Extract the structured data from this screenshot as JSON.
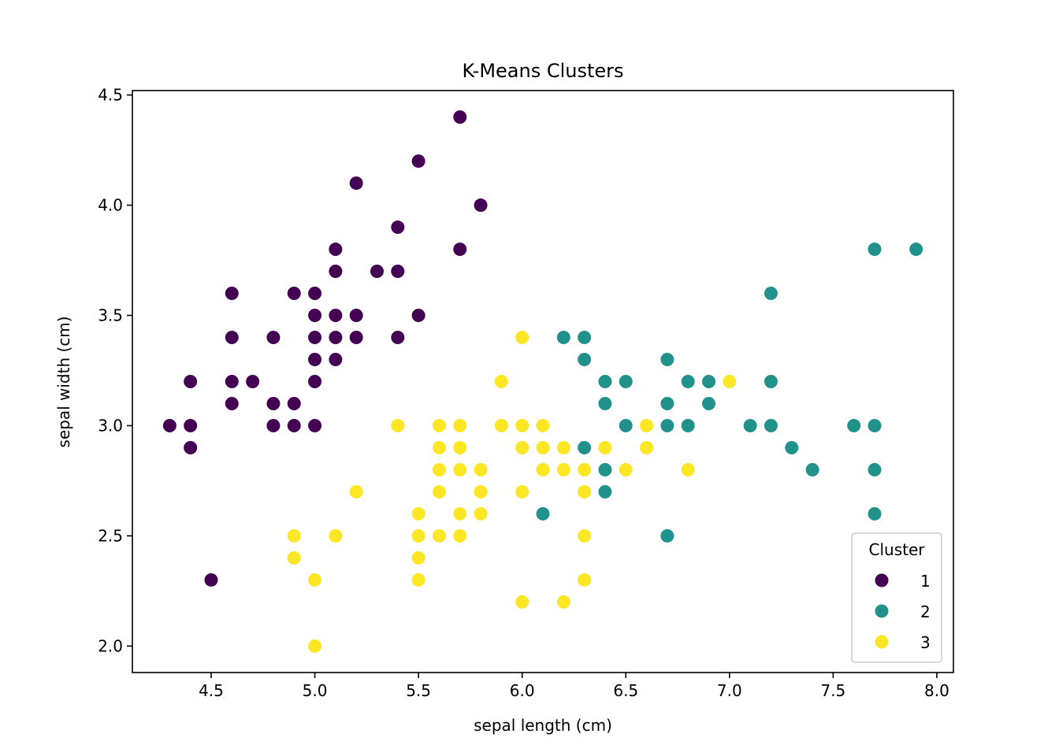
{
  "chart_data": {
    "type": "scatter",
    "title": "K-Means Clusters",
    "xlabel": "sepal length (cm)",
    "ylabel": "sepal width (cm)",
    "xlim": [
      4.12,
      8.08
    ],
    "ylim": [
      1.88,
      4.52
    ],
    "xticks": [
      "4.5",
      "5.0",
      "5.5",
      "6.0",
      "6.5",
      "7.0",
      "7.5",
      "8.0"
    ],
    "yticks": [
      "2.0",
      "2.5",
      "3.0",
      "3.5",
      "4.0",
      "4.5"
    ],
    "grid": false,
    "legend": {
      "title": "Cluster",
      "position": "bottom-right"
    },
    "series": [
      {
        "name": "1",
        "color": "#440154",
        "points": [
          [
            5.7,
            4.4
          ],
          [
            5.5,
            4.2
          ],
          [
            5.2,
            4.1
          ],
          [
            5.8,
            4.0
          ],
          [
            5.4,
            3.9
          ],
          [
            5.1,
            3.8
          ],
          [
            5.7,
            3.8
          ],
          [
            5.1,
            3.7
          ],
          [
            5.3,
            3.7
          ],
          [
            5.4,
            3.7
          ],
          [
            4.6,
            3.6
          ],
          [
            4.9,
            3.6
          ],
          [
            5.0,
            3.6
          ],
          [
            5.0,
            3.5
          ],
          [
            5.1,
            3.5
          ],
          [
            5.2,
            3.5
          ],
          [
            5.5,
            3.5
          ],
          [
            4.6,
            3.4
          ],
          [
            4.8,
            3.4
          ],
          [
            5.0,
            3.4
          ],
          [
            5.1,
            3.4
          ],
          [
            5.2,
            3.4
          ],
          [
            5.4,
            3.4
          ],
          [
            5.0,
            3.3
          ],
          [
            5.1,
            3.3
          ],
          [
            4.4,
            3.2
          ],
          [
            4.6,
            3.2
          ],
          [
            4.7,
            3.2
          ],
          [
            5.0,
            3.2
          ],
          [
            4.6,
            3.1
          ],
          [
            4.8,
            3.1
          ],
          [
            4.9,
            3.1
          ],
          [
            4.3,
            3.0
          ],
          [
            4.4,
            3.0
          ],
          [
            4.8,
            3.0
          ],
          [
            4.9,
            3.0
          ],
          [
            5.0,
            3.0
          ],
          [
            4.4,
            2.9
          ],
          [
            4.5,
            2.3
          ]
        ]
      },
      {
        "name": "2",
        "color": "#21918c",
        "points": [
          [
            7.7,
            3.8
          ],
          [
            7.9,
            3.8
          ],
          [
            7.2,
            3.6
          ],
          [
            6.2,
            3.4
          ],
          [
            6.3,
            3.4
          ],
          [
            6.3,
            3.3
          ],
          [
            6.7,
            3.3
          ],
          [
            6.4,
            3.2
          ],
          [
            6.5,
            3.2
          ],
          [
            6.8,
            3.2
          ],
          [
            6.9,
            3.2
          ],
          [
            7.2,
            3.2
          ],
          [
            6.4,
            3.1
          ],
          [
            6.7,
            3.1
          ],
          [
            6.9,
            3.1
          ],
          [
            6.5,
            3.0
          ],
          [
            6.7,
            3.0
          ],
          [
            6.8,
            3.0
          ],
          [
            7.1,
            3.0
          ],
          [
            7.2,
            3.0
          ],
          [
            7.6,
            3.0
          ],
          [
            7.7,
            3.0
          ],
          [
            6.3,
            2.9
          ],
          [
            7.3,
            2.9
          ],
          [
            6.4,
            2.8
          ],
          [
            7.4,
            2.8
          ],
          [
            7.7,
            2.8
          ],
          [
            6.4,
            2.7
          ],
          [
            6.1,
            2.6
          ],
          [
            7.7,
            2.6
          ],
          [
            6.7,
            2.5
          ]
        ]
      },
      {
        "name": "3",
        "color": "#fde725",
        "points": [
          [
            6.0,
            3.4
          ],
          [
            5.9,
            3.2
          ],
          [
            7.0,
            3.2
          ],
          [
            5.4,
            3.0
          ],
          [
            5.6,
            3.0
          ],
          [
            5.7,
            3.0
          ],
          [
            5.9,
            3.0
          ],
          [
            6.0,
            3.0
          ],
          [
            6.1,
            3.0
          ],
          [
            6.6,
            3.0
          ],
          [
            5.6,
            2.9
          ],
          [
            5.7,
            2.9
          ],
          [
            6.0,
            2.9
          ],
          [
            6.1,
            2.9
          ],
          [
            6.2,
            2.9
          ],
          [
            6.4,
            2.9
          ],
          [
            6.6,
            2.9
          ],
          [
            5.6,
            2.8
          ],
          [
            5.7,
            2.8
          ],
          [
            5.8,
            2.8
          ],
          [
            6.1,
            2.8
          ],
          [
            6.2,
            2.8
          ],
          [
            6.3,
            2.8
          ],
          [
            6.5,
            2.8
          ],
          [
            6.8,
            2.8
          ],
          [
            5.2,
            2.7
          ],
          [
            5.6,
            2.7
          ],
          [
            5.8,
            2.7
          ],
          [
            6.0,
            2.7
          ],
          [
            6.3,
            2.7
          ],
          [
            5.5,
            2.6
          ],
          [
            5.7,
            2.6
          ],
          [
            5.8,
            2.6
          ],
          [
            4.9,
            2.5
          ],
          [
            5.1,
            2.5
          ],
          [
            5.5,
            2.5
          ],
          [
            5.6,
            2.5
          ],
          [
            5.7,
            2.5
          ],
          [
            6.3,
            2.5
          ],
          [
            4.9,
            2.4
          ],
          [
            5.5,
            2.4
          ],
          [
            5.0,
            2.3
          ],
          [
            5.5,
            2.3
          ],
          [
            6.3,
            2.3
          ],
          [
            6.0,
            2.2
          ],
          [
            6.2,
            2.2
          ],
          [
            5.0,
            2.0
          ]
        ]
      }
    ]
  }
}
